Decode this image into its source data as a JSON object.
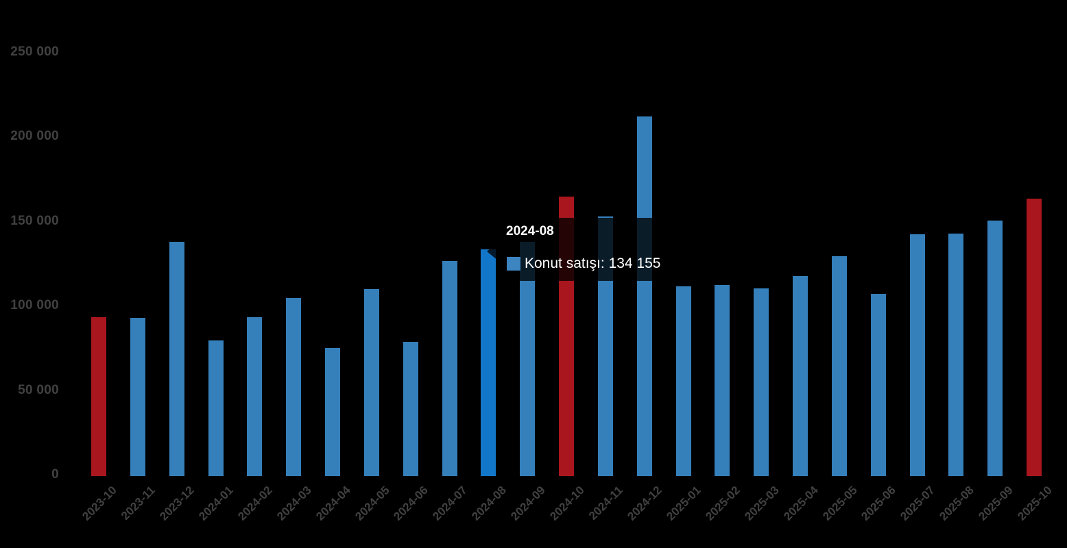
{
  "chart_data": {
    "type": "bar",
    "title": "",
    "categories": [
      "2023-10",
      "2023-11",
      "2023-12",
      "2024-01",
      "2024-02",
      "2024-03",
      "2024-04",
      "2024-05",
      "2024-06",
      "2024-07",
      "2024-08",
      "2024-09",
      "2024-10",
      "2024-11",
      "2024-12",
      "2025-01",
      "2025-02",
      "2025-03",
      "2025-04",
      "2025-05",
      "2025-06",
      "2025-07",
      "2025-08",
      "2025-09",
      "2025-10"
    ],
    "series": [
      {
        "name": "Konut satışı",
        "values": [
          93761,
          93514,
          138577,
          80308,
          93902,
          105394,
          75569,
          110588,
          79313,
          127088,
          134155,
          138600,
          165138,
          153340,
          212637,
          112173,
          112818,
          110795,
          118359,
          130025,
          107723,
          142858,
          143319,
          150881,
          164000
        ]
      }
    ],
    "ylim": [
      0,
      250000
    ],
    "yticks": {
      "values": [
        0,
        50000,
        100000,
        150000,
        200000,
        250000
      ],
      "labels": [
        "0",
        "50 000",
        "100 000",
        "150 000",
        "200 000",
        "250 000"
      ]
    },
    "grid": "off",
    "legend_position": "none",
    "background_color": "#000000",
    "bar_color": "#3580BB",
    "highlight_color": "#A9161D",
    "highlight_categories": [
      "2023-10",
      "2024-10",
      "2025-10"
    ],
    "hovered_category": "2024-08",
    "hover_color": "#1377C9",
    "axis_label_color": "#414141"
  },
  "tooltip": {
    "title": "2024-08",
    "series_label": "Konut satışı",
    "value": "134 155",
    "text": "Konut satışı: 134 155",
    "swatch_color": "#3D85C0"
  }
}
